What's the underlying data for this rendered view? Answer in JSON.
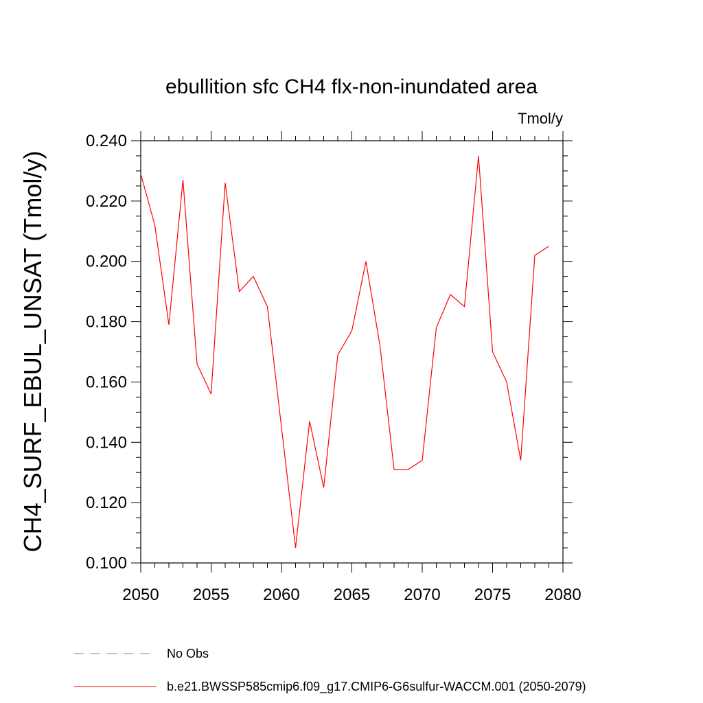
{
  "chart_data": {
    "type": "line",
    "title": "ebullition sfc CH4 flx-non-inundated area",
    "units_label": "Tmol/y",
    "ylabel": "CH4_SURF_EBUL_UNSAT  (Tmol/y)",
    "xlabel": "",
    "xlim": [
      2050,
      2080
    ],
    "ylim": [
      0.1,
      0.24
    ],
    "x_ticks": [
      "2050",
      "2055",
      "2060",
      "2065",
      "2070",
      "2075",
      "2080"
    ],
    "y_ticks": [
      "0.100",
      "0.120",
      "0.140",
      "0.160",
      "0.180",
      "0.200",
      "0.220",
      "0.240"
    ],
    "grid": false,
    "legend_position": "bottom-left",
    "series": [
      {
        "name": "b.e21.BWSSP585cmip6.f09_g17.CMIP6-G6sulfur-WACCM.001 (2050-2079)",
        "color": "#ff0000",
        "x": [
          2050,
          2051,
          2052,
          2053,
          2054,
          2055,
          2056,
          2057,
          2058,
          2059,
          2060,
          2061,
          2062,
          2063,
          2064,
          2065,
          2066,
          2067,
          2068,
          2069,
          2070,
          2071,
          2072,
          2073,
          2074,
          2075,
          2076,
          2077,
          2078,
          2079
        ],
        "values": [
          0.229,
          0.212,
          0.179,
          0.227,
          0.166,
          0.156,
          0.226,
          0.19,
          0.195,
          0.185,
          0.145,
          0.105,
          0.147,
          0.125,
          0.169,
          0.177,
          0.2,
          0.172,
          0.131,
          0.131,
          0.134,
          0.178,
          0.189,
          0.185,
          0.235,
          0.17,
          0.16,
          0.134,
          0.202,
          0.205
        ]
      }
    ],
    "legend": [
      {
        "label": "No Obs",
        "color": "#7b6fd0",
        "dash": true
      },
      {
        "label": "b.e21.BWSSP585cmip6.f09_g17.CMIP6-G6sulfur-WACCM.001 (2050-2079)",
        "color": "#ff0000",
        "dash": false
      }
    ]
  }
}
